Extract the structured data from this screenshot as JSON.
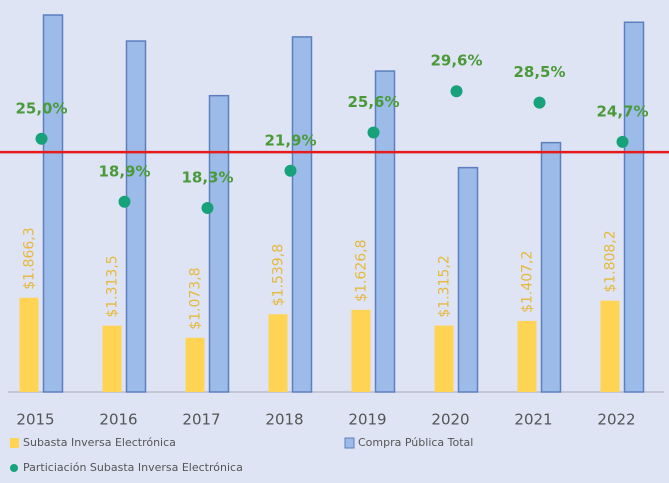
{
  "chart_data": {
    "type": "bar",
    "categories": [
      "2015",
      "2016",
      "2017",
      "2018",
      "2019",
      "2020",
      "2021",
      "2022"
    ],
    "series": [
      {
        "name": "Subasta Inversa Electrónica",
        "color": "#ffd454",
        "values": [
          1866.3,
          1313.5,
          1073.8,
          1539.8,
          1626.8,
          1315.2,
          1407.2,
          1808.2
        ],
        "value_labels": [
          "$1.866,3",
          "$1.313,5",
          "$1.073,8",
          "$1.539,8",
          "$1.626,8",
          "$1.315,2",
          "$1.407,2",
          "$1.808,2"
        ]
      },
      {
        "name": "Compra Pública Total",
        "color": "#9dbbe8",
        "values": [
          7465,
          6950,
          5868,
          7031,
          6355,
          4443,
          4938,
          7321
        ]
      },
      {
        "name": "Particiación Subasta Inversa Electrónica",
        "color": "#17a27a",
        "axis": "y2",
        "values": [
          25.0,
          18.9,
          18.3,
          21.9,
          25.6,
          29.6,
          28.5,
          24.7
        ],
        "value_labels": [
          "25,0%",
          "18,9%",
          "18,3%",
          "21,9%",
          "25,6%",
          "29,6%",
          "28,5%",
          "24,7%"
        ]
      }
    ],
    "reference_line": {
      "value": 23.7,
      "color": "#e31b1b"
    }
  }
}
